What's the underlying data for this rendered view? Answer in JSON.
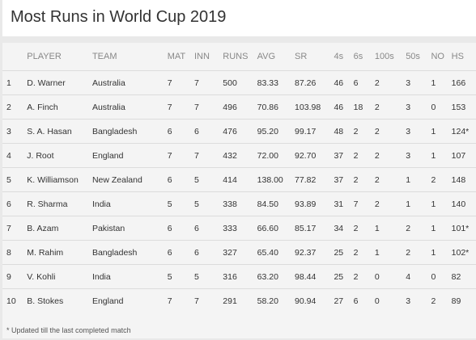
{
  "title": "Most Runs in World Cup 2019",
  "columns": [
    "",
    "PLAYER",
    "TEAM",
    "MAT",
    "INN",
    "RUNS",
    "AVG",
    "SR",
    "4s",
    "6s",
    "100s",
    "50s",
    "NO",
    "HS"
  ],
  "rows": [
    [
      "1",
      "D. Warner",
      "Australia",
      "7",
      "7",
      "500",
      "83.33",
      "87.26",
      "46",
      "6",
      "2",
      "3",
      "1",
      "166"
    ],
    [
      "2",
      "A. Finch",
      "Australia",
      "7",
      "7",
      "496",
      "70.86",
      "103.98",
      "46",
      "18",
      "2",
      "3",
      "0",
      "153"
    ],
    [
      "3",
      "S. A. Hasan",
      "Bangladesh",
      "6",
      "6",
      "476",
      "95.20",
      "99.17",
      "48",
      "2",
      "2",
      "3",
      "1",
      "124*"
    ],
    [
      "4",
      "J. Root",
      "England",
      "7",
      "7",
      "432",
      "72.00",
      "92.70",
      "37",
      "2",
      "2",
      "3",
      "1",
      "107"
    ],
    [
      "5",
      "K. Williamson",
      "New Zealand",
      "6",
      "5",
      "414",
      "138.00",
      "77.82",
      "37",
      "2",
      "2",
      "1",
      "2",
      "148"
    ],
    [
      "6",
      "R. Sharma",
      "India",
      "5",
      "5",
      "338",
      "84.50",
      "93.89",
      "31",
      "7",
      "2",
      "1",
      "1",
      "140"
    ],
    [
      "7",
      "B. Azam",
      "Pakistan",
      "6",
      "6",
      "333",
      "66.60",
      "85.17",
      "34",
      "2",
      "1",
      "2",
      "1",
      "101*"
    ],
    [
      "8",
      "M. Rahim",
      "Bangladesh",
      "6",
      "6",
      "327",
      "65.40",
      "92.37",
      "25",
      "2",
      "1",
      "2",
      "1",
      "102*"
    ],
    [
      "9",
      "V. Kohli",
      "India",
      "5",
      "5",
      "316",
      "63.20",
      "98.44",
      "25",
      "2",
      "0",
      "4",
      "0",
      "82"
    ],
    [
      "10",
      "B. Stokes",
      "England",
      "7",
      "7",
      "291",
      "58.20",
      "90.94",
      "27",
      "6",
      "0",
      "3",
      "2",
      "89"
    ]
  ],
  "footnote": "* Updated till the last completed match"
}
